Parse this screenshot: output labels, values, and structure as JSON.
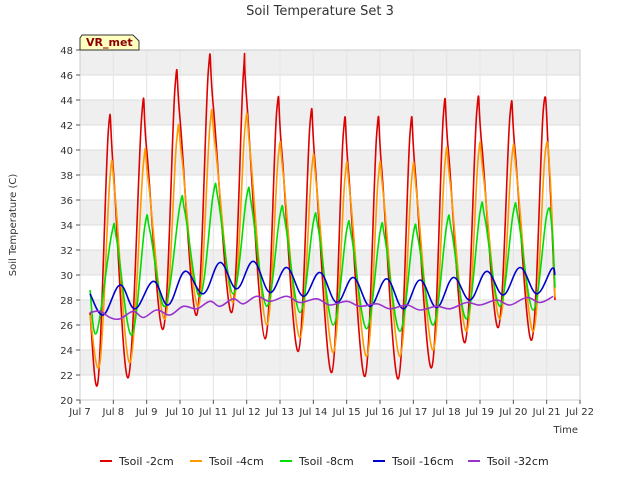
{
  "chart_data": {
    "type": "line",
    "title": "Soil Temperature Set 3",
    "xlabel": "Time",
    "ylabel": "Soil Temperature (C)",
    "badge": "VR_met",
    "ylim": [
      20,
      48
    ],
    "yticks": [
      20,
      22,
      24,
      26,
      28,
      30,
      32,
      34,
      36,
      38,
      40,
      42,
      44,
      46,
      48
    ],
    "xlim": [
      7,
      22
    ],
    "xticks": [
      {
        "v": 7,
        "label": "Jul 7"
      },
      {
        "v": 8,
        "label": "Jul 8"
      },
      {
        "v": 9,
        "label": "Jul 9"
      },
      {
        "v": 10,
        "label": "Jul 10"
      },
      {
        "v": 11,
        "label": "Jul 11"
      },
      {
        "v": 12,
        "label": "Jul 12"
      },
      {
        "v": 13,
        "label": "Jul 13"
      },
      {
        "v": 14,
        "label": "Jul 14"
      },
      {
        "v": 15,
        "label": "Jul 15"
      },
      {
        "v": 16,
        "label": "Jul 16"
      },
      {
        "v": 17,
        "label": "Jul 17"
      },
      {
        "v": 18,
        "label": "Jul 18"
      },
      {
        "v": 19,
        "label": "Jul 19"
      },
      {
        "v": 20,
        "label": "Jul 20"
      },
      {
        "v": 21,
        "label": "Jul 21"
      },
      {
        "v": 22,
        "label": "Jul 22"
      }
    ],
    "grid": true,
    "banded_background": true,
    "legend_position": "bottom",
    "series": [
      {
        "name": "Tsoil -2cm",
        "color": "#dd0000",
        "points": [
          [
            7.3,
            27.0
          ],
          [
            7.55,
            21.7
          ],
          [
            7.85,
            41.5
          ],
          [
            8.0,
            38.5
          ],
          [
            8.45,
            21.8
          ],
          [
            8.85,
            42.7
          ],
          [
            9.0,
            40.0
          ],
          [
            9.5,
            25.7
          ],
          [
            9.85,
            45.0
          ],
          [
            10.0,
            42.5
          ],
          [
            10.5,
            26.8
          ],
          [
            10.85,
            46.3
          ],
          [
            11.0,
            43.5
          ],
          [
            11.55,
            27.0
          ],
          [
            11.9,
            46.0
          ],
          [
            12.0,
            44.0
          ],
          [
            12.55,
            24.9
          ],
          [
            12.9,
            43.1
          ],
          [
            13.05,
            40.0
          ],
          [
            13.55,
            23.9
          ],
          [
            13.9,
            42.1
          ],
          [
            14.05,
            39.0
          ],
          [
            14.55,
            22.2
          ],
          [
            14.9,
            41.3
          ],
          [
            15.05,
            38.5
          ],
          [
            15.55,
            21.9
          ],
          [
            15.9,
            41.3
          ],
          [
            16.05,
            38.5
          ],
          [
            16.55,
            21.7
          ],
          [
            16.9,
            41.3
          ],
          [
            17.05,
            38.5
          ],
          [
            17.55,
            22.6
          ],
          [
            17.9,
            42.7
          ],
          [
            18.05,
            40.0
          ],
          [
            18.55,
            24.6
          ],
          [
            18.9,
            43.0
          ],
          [
            19.05,
            40.5
          ],
          [
            19.55,
            25.8
          ],
          [
            19.9,
            42.8
          ],
          [
            20.05,
            40.0
          ],
          [
            20.55,
            24.8
          ],
          [
            20.9,
            43.2
          ],
          [
            21.05,
            40.0
          ],
          [
            21.25,
            28.0
          ]
        ]
      },
      {
        "name": "Tsoil -4cm",
        "color": "#ff9900",
        "points": [
          [
            7.3,
            26.8
          ],
          [
            7.6,
            23.0
          ],
          [
            7.9,
            37.8
          ],
          [
            8.05,
            36.5
          ],
          [
            8.5,
            23.0
          ],
          [
            8.9,
            38.8
          ],
          [
            9.05,
            37.5
          ],
          [
            9.55,
            26.5
          ],
          [
            9.9,
            40.8
          ],
          [
            10.05,
            39.5
          ],
          [
            10.55,
            27.5
          ],
          [
            10.9,
            42.0
          ],
          [
            11.05,
            40.5
          ],
          [
            11.6,
            27.8
          ],
          [
            11.95,
            41.8
          ],
          [
            12.1,
            40.0
          ],
          [
            12.6,
            26.0
          ],
          [
            12.95,
            39.5
          ],
          [
            13.1,
            38.0
          ],
          [
            13.6,
            25.0
          ],
          [
            13.95,
            38.5
          ],
          [
            14.1,
            37.0
          ],
          [
            14.6,
            23.8
          ],
          [
            14.95,
            37.8
          ],
          [
            15.1,
            36.5
          ],
          [
            15.6,
            23.5
          ],
          [
            15.95,
            37.8
          ],
          [
            16.1,
            36.5
          ],
          [
            16.6,
            23.5
          ],
          [
            16.95,
            37.7
          ],
          [
            17.1,
            36.5
          ],
          [
            17.6,
            24.0
          ],
          [
            17.95,
            39.0
          ],
          [
            18.1,
            37.5
          ],
          [
            18.6,
            25.5
          ],
          [
            18.95,
            39.5
          ],
          [
            19.1,
            38.0
          ],
          [
            19.6,
            26.5
          ],
          [
            19.95,
            39.3
          ],
          [
            20.1,
            38.0
          ],
          [
            20.6,
            25.5
          ],
          [
            20.95,
            39.6
          ],
          [
            21.1,
            38.0
          ],
          [
            21.25,
            28.2
          ]
        ]
      },
      {
        "name": "Tsoil -8cm",
        "color": "#00dd00",
        "points": [
          [
            7.3,
            28.8
          ],
          [
            7.5,
            25.4
          ],
          [
            7.95,
            33.3
          ],
          [
            8.1,
            32.8
          ],
          [
            8.55,
            25.2
          ],
          [
            8.95,
            34.0
          ],
          [
            9.1,
            33.5
          ],
          [
            9.55,
            27.5
          ],
          [
            10.0,
            35.6
          ],
          [
            10.15,
            35.0
          ],
          [
            10.6,
            28.3
          ],
          [
            11.0,
            36.5
          ],
          [
            11.15,
            36.0
          ],
          [
            11.6,
            28.5
          ],
          [
            12.0,
            36.3
          ],
          [
            12.15,
            35.5
          ],
          [
            12.6,
            27.5
          ],
          [
            13.0,
            34.8
          ],
          [
            13.15,
            34.3
          ],
          [
            13.6,
            27.0
          ],
          [
            14.0,
            34.2
          ],
          [
            14.15,
            33.7
          ],
          [
            14.6,
            26.0
          ],
          [
            15.0,
            33.6
          ],
          [
            15.15,
            33.0
          ],
          [
            15.6,
            25.7
          ],
          [
            16.0,
            33.4
          ],
          [
            16.15,
            32.9
          ],
          [
            16.6,
            25.5
          ],
          [
            17.0,
            33.3
          ],
          [
            17.15,
            32.8
          ],
          [
            17.6,
            26.0
          ],
          [
            18.0,
            34.0
          ],
          [
            18.15,
            33.5
          ],
          [
            18.6,
            26.5
          ],
          [
            19.0,
            35.0
          ],
          [
            19.15,
            34.5
          ],
          [
            19.6,
            27.5
          ],
          [
            20.0,
            35.0
          ],
          [
            20.15,
            34.5
          ],
          [
            20.6,
            27.2
          ],
          [
            21.0,
            34.8
          ],
          [
            21.15,
            34.0
          ],
          [
            21.25,
            29.0
          ]
        ]
      },
      {
        "name": "Tsoil -16cm",
        "color": "#0000cc",
        "points": [
          [
            7.3,
            28.5
          ],
          [
            7.7,
            26.8
          ],
          [
            8.2,
            29.2
          ],
          [
            8.65,
            27.3
          ],
          [
            9.2,
            29.5
          ],
          [
            9.65,
            27.6
          ],
          [
            10.15,
            30.3
          ],
          [
            10.7,
            28.5
          ],
          [
            11.2,
            31.0
          ],
          [
            11.7,
            28.9
          ],
          [
            12.2,
            31.1
          ],
          [
            12.7,
            28.6
          ],
          [
            13.2,
            30.6
          ],
          [
            13.7,
            28.3
          ],
          [
            14.2,
            30.2
          ],
          [
            14.7,
            27.8
          ],
          [
            15.2,
            29.8
          ],
          [
            15.7,
            27.5
          ],
          [
            16.2,
            29.7
          ],
          [
            16.7,
            27.3
          ],
          [
            17.2,
            29.6
          ],
          [
            17.7,
            27.4
          ],
          [
            18.2,
            29.8
          ],
          [
            18.7,
            28.0
          ],
          [
            19.2,
            30.3
          ],
          [
            19.7,
            28.4
          ],
          [
            20.2,
            30.6
          ],
          [
            20.7,
            28.5
          ],
          [
            21.15,
            30.5
          ],
          [
            21.25,
            30.0
          ]
        ]
      },
      {
        "name": "Tsoil -32cm",
        "color": "#9933cc",
        "points": [
          [
            7.3,
            27.0
          ],
          [
            7.6,
            27.1
          ],
          [
            7.9,
            26.6
          ],
          [
            8.2,
            26.5
          ],
          [
            8.6,
            27.1
          ],
          [
            8.9,
            26.6
          ],
          [
            9.3,
            27.2
          ],
          [
            9.7,
            26.8
          ],
          [
            10.1,
            27.5
          ],
          [
            10.5,
            27.3
          ],
          [
            10.9,
            27.9
          ],
          [
            11.2,
            27.5
          ],
          [
            11.6,
            28.1
          ],
          [
            11.9,
            27.7
          ],
          [
            12.3,
            28.3
          ],
          [
            12.7,
            27.9
          ],
          [
            13.2,
            28.3
          ],
          [
            13.6,
            27.8
          ],
          [
            14.1,
            28.1
          ],
          [
            14.5,
            27.6
          ],
          [
            15.0,
            27.9
          ],
          [
            15.4,
            27.5
          ],
          [
            15.9,
            27.7
          ],
          [
            16.3,
            27.3
          ],
          [
            16.8,
            27.6
          ],
          [
            17.2,
            27.2
          ],
          [
            17.7,
            27.5
          ],
          [
            18.1,
            27.3
          ],
          [
            18.6,
            27.8
          ],
          [
            19.0,
            27.6
          ],
          [
            19.5,
            28.0
          ],
          [
            19.9,
            27.6
          ],
          [
            20.4,
            28.2
          ],
          [
            20.8,
            27.8
          ],
          [
            21.2,
            28.3
          ]
        ]
      }
    ]
  }
}
